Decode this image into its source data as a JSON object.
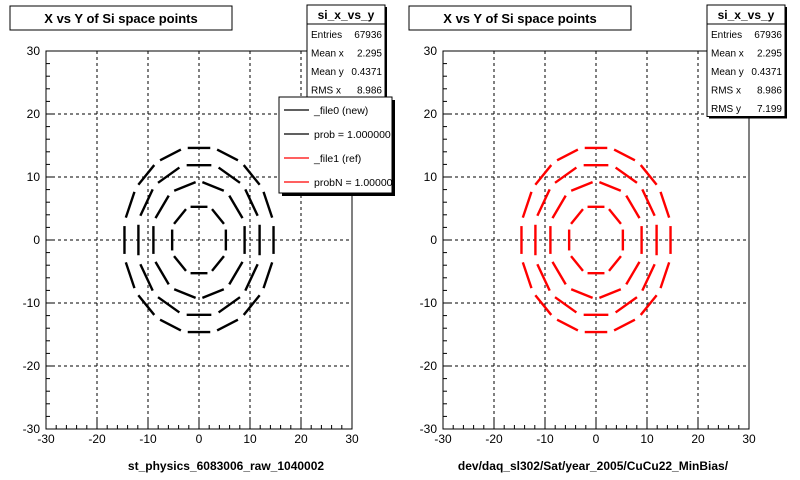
{
  "chart_data": [
    {
      "type": "scatter",
      "title": "X vs Y of Si space points",
      "xlim": [
        -30,
        30
      ],
      "ylim": [
        -30,
        30
      ],
      "x_ticks": [
        -30,
        -20,
        -10,
        0,
        10,
        20,
        30
      ],
      "y_ticks": [
        -30,
        -20,
        -10,
        0,
        10,
        20,
        30
      ],
      "grid": true,
      "xlabel": "st_physics_6083006_raw_1040002",
      "marker_color": "#000000",
      "stats": {
        "name": "si_x_vs_y",
        "rows": [
          {
            "label": "Entries",
            "value": "67936"
          },
          {
            "label": "Mean x",
            "value": "2.295"
          },
          {
            "label": "Mean y",
            "value": "0.4371"
          },
          {
            "label": "RMS x",
            "value": "8.986"
          }
        ]
      },
      "legend": {
        "placement": "top-right",
        "entries": [
          {
            "label": "_file0 (new)",
            "color": "#000000"
          },
          {
            "label": "prob = 1.000000",
            "color": "#000000"
          },
          {
            "label": "_file1 (ref)",
            "color": "#ff0000"
          },
          {
            "label": "probN = 1.000000",
            "color": "#ff0000"
          }
        ]
      },
      "rings": [
        {
          "radius": 5.7,
          "segments": 8,
          "rotation_deg": 22.5
        },
        {
          "radius": 9.4,
          "segments": 10,
          "rotation_deg": 18
        },
        {
          "radius": 12.3,
          "segments": 12,
          "rotation_deg": 15
        },
        {
          "radius": 14.9,
          "segments": 16,
          "rotation_deg": 11.25
        }
      ]
    },
    {
      "type": "scatter",
      "title": "X vs Y of Si space points",
      "xlim": [
        -30,
        30
      ],
      "ylim": [
        -30,
        30
      ],
      "x_ticks": [
        -30,
        -20,
        -10,
        0,
        10,
        20,
        30
      ],
      "y_ticks": [
        -30,
        -20,
        -10,
        0,
        10,
        20,
        30
      ],
      "grid": true,
      "xlabel": "dev/daq_sl302/Sat/year_2005/CuCu22_MinBias/",
      "marker_color": "#ff0000",
      "stats": {
        "name": "si_x_vs_y",
        "rows": [
          {
            "label": "Entries",
            "value": "67936"
          },
          {
            "label": "Mean x",
            "value": "2.295"
          },
          {
            "label": "Mean y",
            "value": "0.4371"
          },
          {
            "label": "RMS x",
            "value": "8.986"
          },
          {
            "label": "RMS y",
            "value": "7.199"
          }
        ]
      },
      "rings": [
        {
          "radius": 5.7,
          "segments": 8,
          "rotation_deg": 22.5
        },
        {
          "radius": 9.4,
          "segments": 10,
          "rotation_deg": 18
        },
        {
          "radius": 12.3,
          "segments": 12,
          "rotation_deg": 15
        },
        {
          "radius": 14.9,
          "segments": 16,
          "rotation_deg": 11.25
        }
      ]
    }
  ]
}
